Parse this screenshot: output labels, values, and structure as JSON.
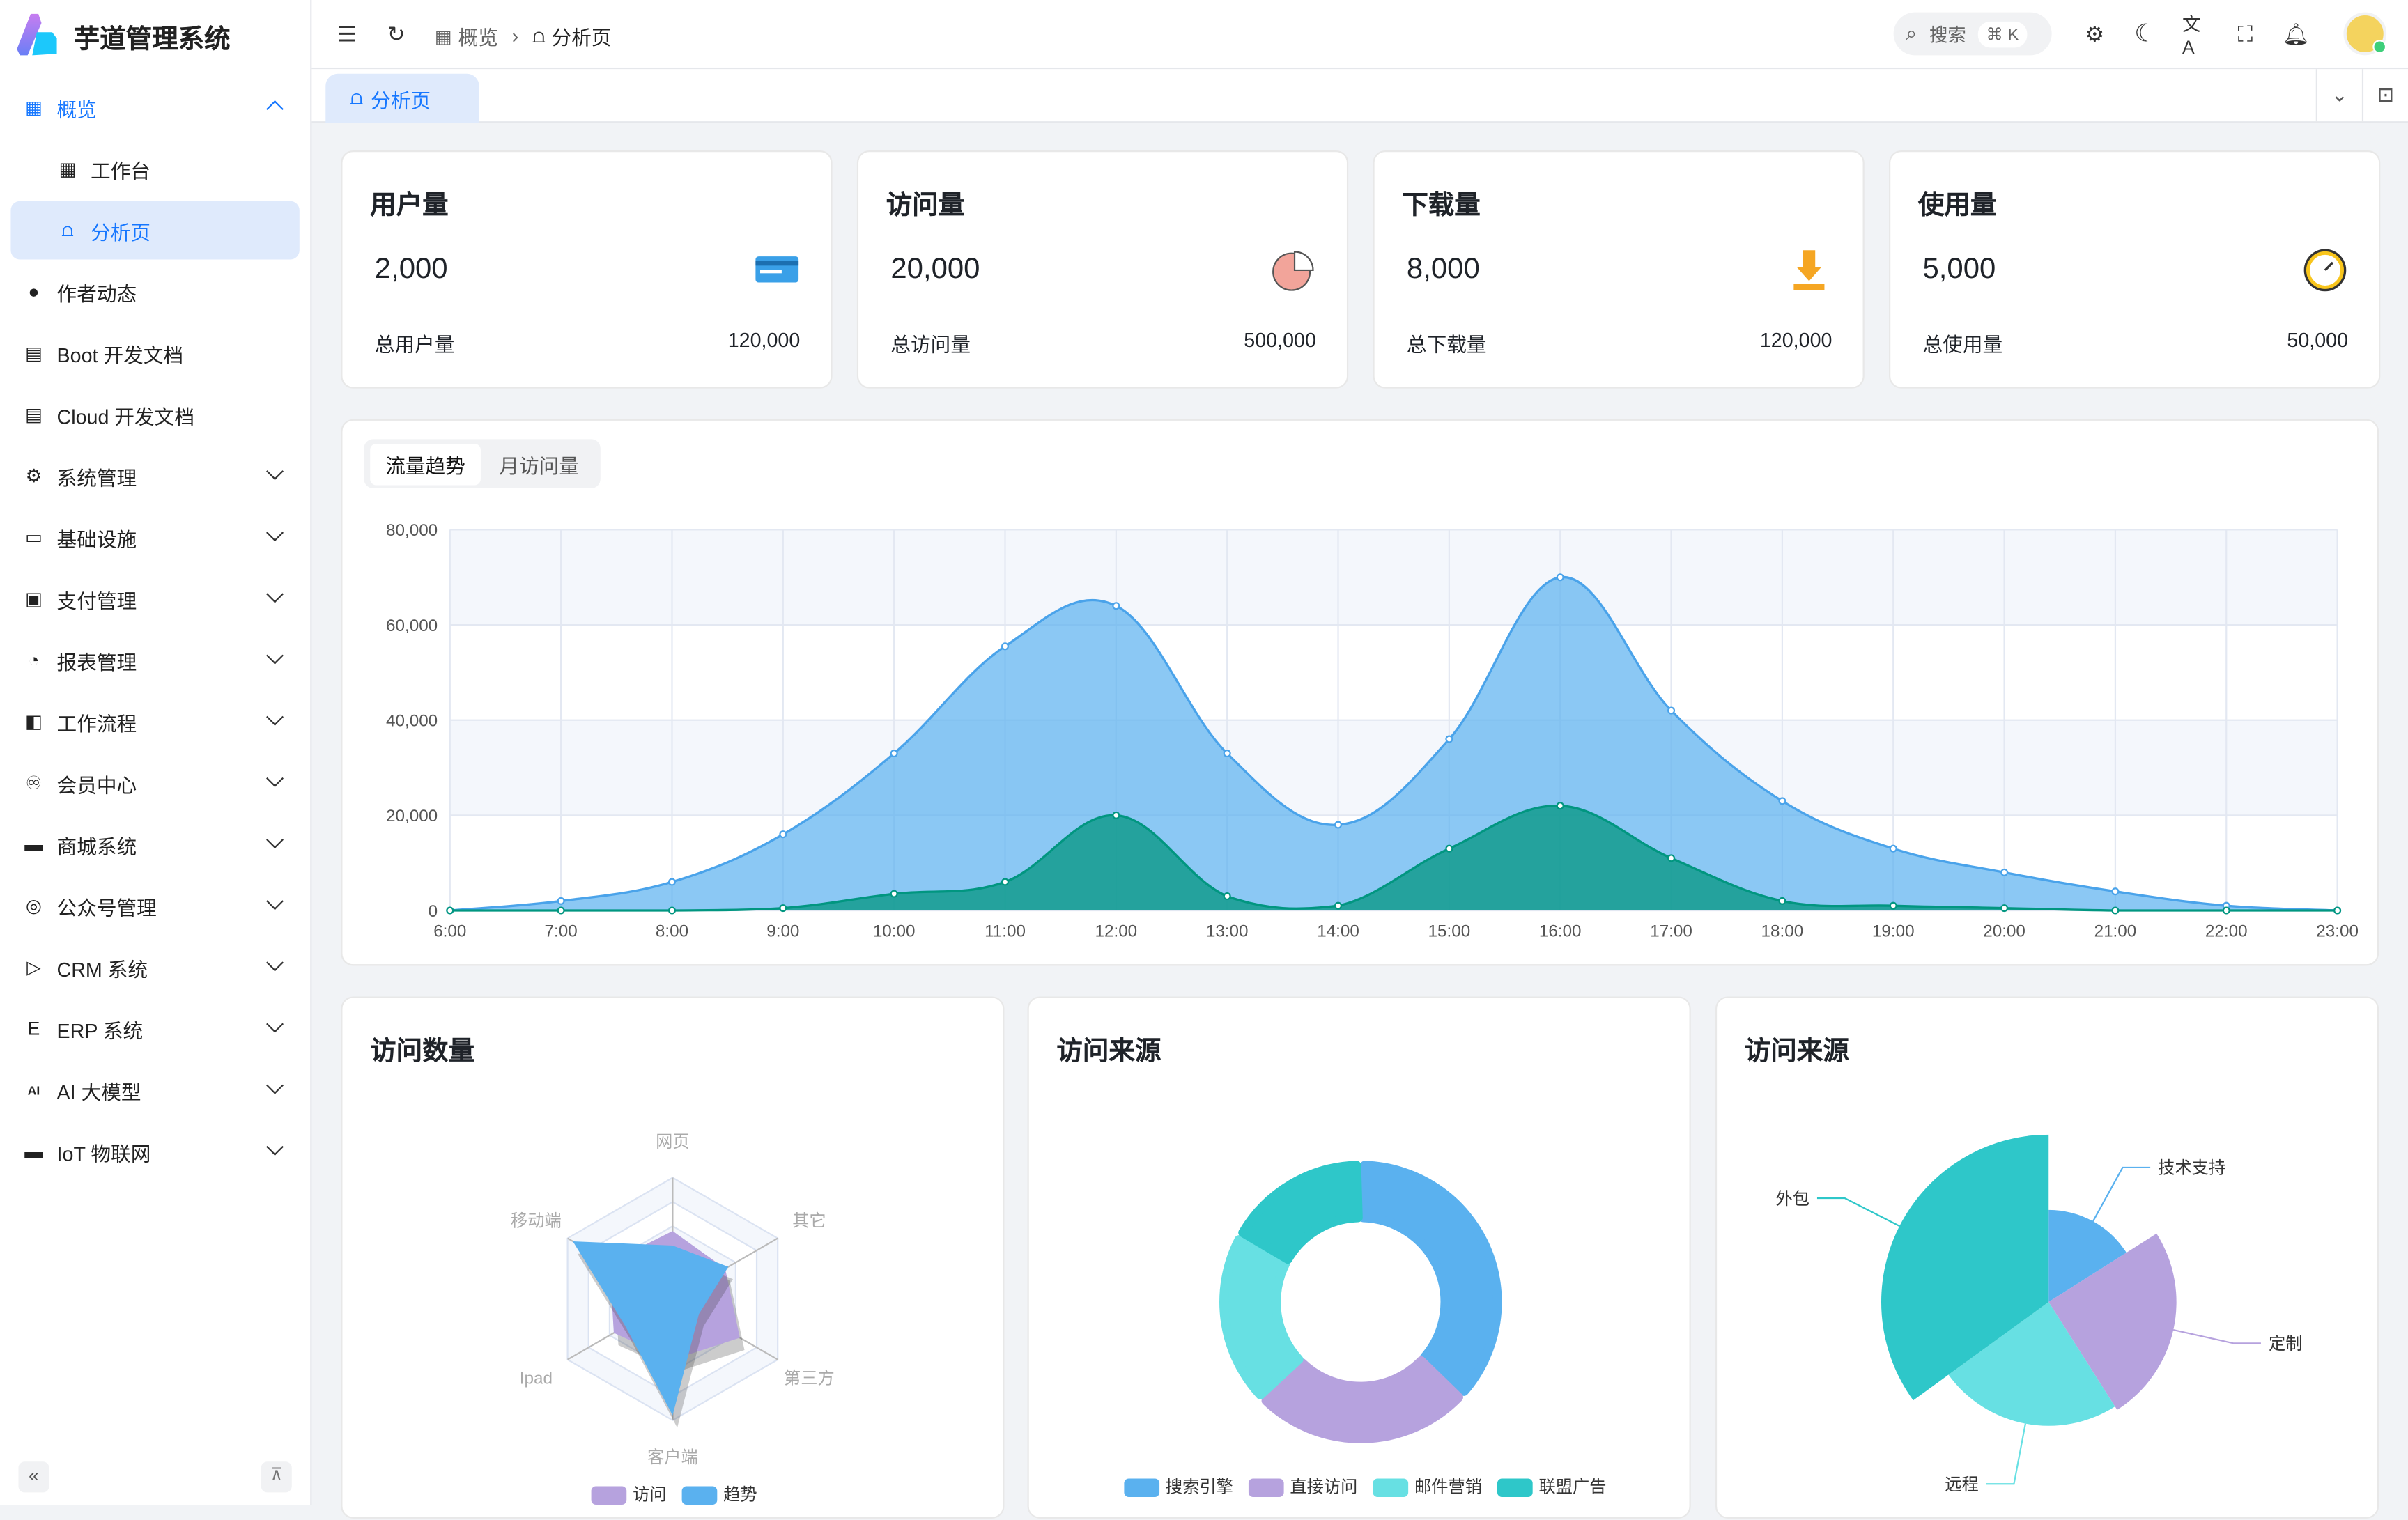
{
  "brand": {
    "name": "芋道管理系统"
  },
  "sidebar": {
    "items": [
      {
        "label": "概览",
        "icon": "dashboard-icon"
      },
      {
        "label": "工作台",
        "icon": "workspace-icon"
      },
      {
        "label": "分析页",
        "icon": "chart-icon"
      },
      {
        "label": "作者动态",
        "icon": "user-icon"
      },
      {
        "label": "Boot 开发文档",
        "icon": "document-icon"
      },
      {
        "label": "Cloud 开发文档",
        "icon": "documents-icon"
      },
      {
        "label": "系统管理",
        "icon": "gear-icon"
      },
      {
        "label": "基础设施",
        "icon": "monitor-icon"
      },
      {
        "label": "支付管理",
        "icon": "payment-icon"
      },
      {
        "label": "报表管理",
        "icon": "pie-icon"
      },
      {
        "label": "工作流程",
        "icon": "workflow-icon"
      },
      {
        "label": "会员中心",
        "icon": "bike-icon"
      },
      {
        "label": "商城系统",
        "icon": "shop-icon"
      },
      {
        "label": "公众号管理",
        "icon": "compass-icon"
      },
      {
        "label": "CRM 系统",
        "icon": "crm-icon"
      },
      {
        "label": "ERP 系统",
        "icon": "erp-icon"
      },
      {
        "label": "AI 大模型",
        "icon": "ai-icon"
      },
      {
        "label": "IoT 物联网",
        "icon": "iot-icon"
      }
    ]
  },
  "header": {
    "breadcrumb": [
      "概览",
      "分析页"
    ],
    "search_placeholder": "搜索",
    "search_shortcut": "⌘ K"
  },
  "tabs": [
    {
      "label": "分析页"
    }
  ],
  "stats": [
    {
      "title": "用户量",
      "value": "2,000",
      "footer": "总用户量",
      "total": "120,000",
      "icon": "credit-card-icon"
    },
    {
      "title": "访问量",
      "value": "20,000",
      "footer": "总访问量",
      "total": "500,000",
      "icon": "pie-chart-icon"
    },
    {
      "title": "下载量",
      "value": "8,000",
      "footer": "总下载量",
      "total": "120,000",
      "icon": "download-icon"
    },
    {
      "title": "使用量",
      "value": "5,000",
      "footer": "总使用量",
      "total": "50,000",
      "icon": "clock-icon"
    }
  ],
  "trend": {
    "tabs": [
      "流量趋势",
      "月访问量"
    ],
    "active_tab": 0
  },
  "colors": {
    "primary": "#1677ff",
    "blue": "#5ab1ef",
    "purple": "#b6a2de",
    "cyan": "#67e0e3",
    "teal": "#2ec7c9",
    "green": "#019680"
  },
  "chart_data": [
    {
      "type": "area",
      "x": [
        "6:00",
        "7:00",
        "8:00",
        "9:00",
        "10:00",
        "11:00",
        "12:00",
        "13:00",
        "14:00",
        "15:00",
        "16:00",
        "17:00",
        "18:00",
        "19:00",
        "20:00",
        "21:00",
        "22:00",
        "23:00"
      ],
      "yticks": [
        "0",
        "20,000",
        "40,000",
        "60,000",
        "80,000"
      ],
      "ylim": [
        0,
        80000
      ],
      "grid": true,
      "series": [
        {
          "values": [
            0,
            2000,
            6000,
            16000,
            33000,
            55500,
            64000,
            33000,
            18000,
            36000,
            70000,
            42000,
            23000,
            13000,
            8000,
            4000,
            1000,
            0
          ],
          "color": "#5ab1ef"
        },
        {
          "values": [
            0,
            0,
            0,
            500,
            3500,
            6000,
            20000,
            3000,
            1000,
            13000,
            22000,
            11000,
            2000,
            1000,
            500,
            0,
            0,
            0
          ],
          "color": "#019680"
        }
      ]
    },
    {
      "type": "radar",
      "title": "访问数量",
      "indicators": [
        "网页",
        "其它",
        "第三方",
        "客户端",
        "Ipad",
        "移动端"
      ],
      "max": 100,
      "series": [
        {
          "name": "访问",
          "values": [
            56,
            50,
            64,
            50,
            56,
            60
          ],
          "color": "#b6a2de"
        },
        {
          "name": "趋势",
          "values": [
            44,
            53,
            25,
            96,
            45,
            95
          ],
          "color": "#5ab1ef"
        }
      ]
    },
    {
      "type": "pie",
      "title": "访问来源",
      "donut": true,
      "slices": [
        {
          "name": "搜索引擎",
          "value": 1048,
          "color": "#5ab1ef"
        },
        {
          "name": "直接访问",
          "value": 735,
          "color": "#b6a2de"
        },
        {
          "name": "邮件营销",
          "value": 580,
          "color": "#67e0e3"
        },
        {
          "name": "联盟广告",
          "value": 484,
          "color": "#2ec7c9"
        }
      ]
    },
    {
      "type": "pie",
      "title": "访问来源",
      "rose": true,
      "slices": [
        {
          "name": "技术支持",
          "value": 16,
          "color": "#5ab1ef"
        },
        {
          "name": "定制",
          "value": 25,
          "color": "#b6a2de"
        },
        {
          "name": "远程",
          "value": 24,
          "color": "#67e0e3"
        },
        {
          "name": "外包",
          "value": 35,
          "color": "#2ec7c9"
        }
      ]
    }
  ]
}
